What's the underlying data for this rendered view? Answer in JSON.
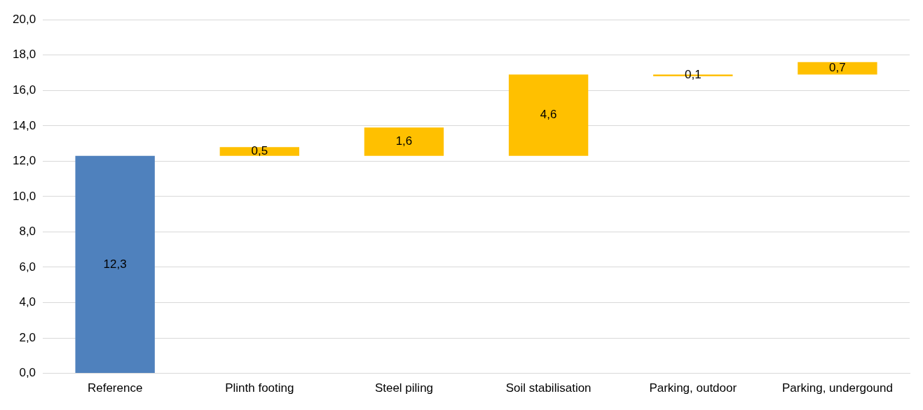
{
  "chart_data": {
    "type": "bar",
    "categories": [
      "Reference",
      "Plinth footing",
      "Steel piling",
      "Soil stabilisation",
      "Parking, outdoor",
      "Parking, undergound"
    ],
    "values": [
      12.3,
      0.5,
      1.6,
      4.6,
      0.1,
      0.7
    ],
    "base": [
      0,
      12.3,
      12.3,
      12.3,
      16.8,
      16.9
    ],
    "colors": [
      "#4f81bd",
      "#ffc000",
      "#ffc000",
      "#ffc000",
      "#ffc000",
      "#ffc000"
    ],
    "value_labels": [
      "12,3",
      "0,5",
      "1,6",
      "4,6",
      "0,1",
      "0,7"
    ],
    "ylim": [
      0,
      20
    ],
    "yticks": [
      {
        "value": 0,
        "label": "0,0"
      },
      {
        "value": 2,
        "label": "2,0"
      },
      {
        "value": 4,
        "label": "4,0"
      },
      {
        "value": 6,
        "label": "6,0"
      },
      {
        "value": 8,
        "label": "8,0"
      },
      {
        "value": 10,
        "label": "10,0"
      },
      {
        "value": 12,
        "label": "12,0"
      },
      {
        "value": 14,
        "label": "14,0"
      },
      {
        "value": 16,
        "label": "16,0"
      },
      {
        "value": 18,
        "label": "18,0"
      },
      {
        "value": 20,
        "label": "20,0"
      }
    ],
    "grid": "y",
    "legend": false
  }
}
